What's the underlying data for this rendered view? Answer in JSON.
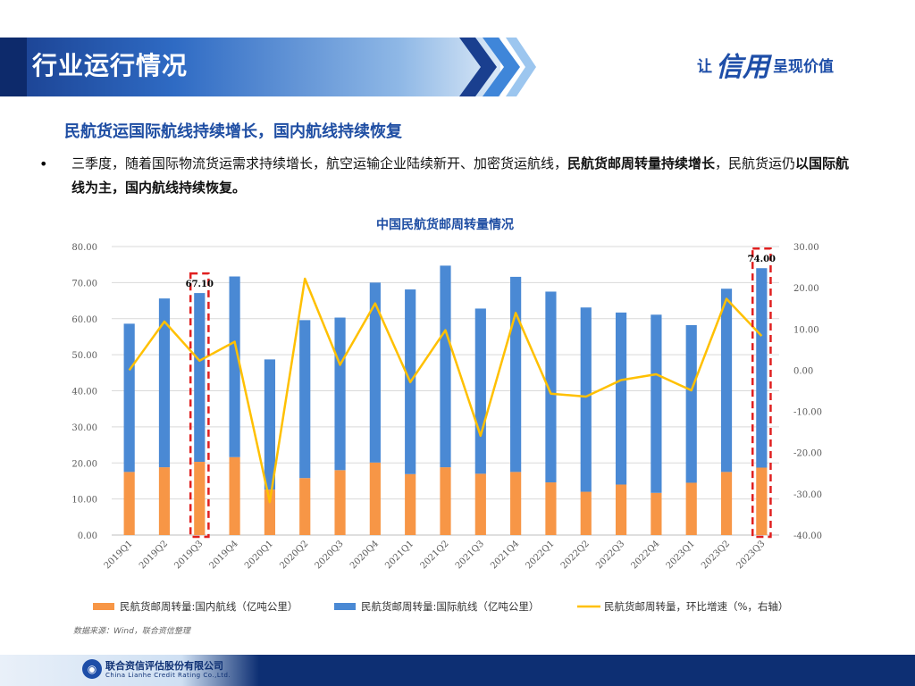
{
  "header": {
    "title": "行业运行情况"
  },
  "slogan": {
    "part1": "让",
    "part2": "信用",
    "part3": "呈现价值"
  },
  "subtitle": "民航货运国际航线持续增长，国内航线持续恢复",
  "paragraph": {
    "bullet": "•",
    "t1": "三季度，随着国际物流货运需求持续增长，航空运输企业陆续新开、加密货运航线，",
    "b1": "民航货邮周转量持续增长",
    "t2": "，民航货运仍",
    "b2": "以国际航线为主，国内航线持续恢复。"
  },
  "source": "数据来源：Wind，联合资信整理",
  "footer": {
    "name": "联合资信评估股份有限公司",
    "english": "China Lianhe Credit Rating Co.,Ltd."
  },
  "colors": {
    "domestic": "#f79646",
    "international": "#4a89d4",
    "growth": "#ffc000",
    "highlight": "#e02020",
    "title": "#1f4ea3"
  },
  "chart_data": {
    "type": "bar",
    "stacked": true,
    "title": "中国民航货邮周转量情况",
    "categories": [
      "2019Q1",
      "2019Q2",
      "2019Q3",
      "2019Q4",
      "2020Q1",
      "2020Q2",
      "2020Q3",
      "2020Q4",
      "2021Q1",
      "2021Q2",
      "2021Q3",
      "2021Q4",
      "2022Q1",
      "2022Q2",
      "2022Q3",
      "2022Q4",
      "2023Q1",
      "2023Q2",
      "2023Q3"
    ],
    "series": [
      {
        "name": "民航货邮周转量:国内航线（亿吨公里）",
        "type": "bar",
        "axis": "left",
        "values": [
          17.5,
          18.8,
          20.3,
          21.6,
          12.6,
          15.8,
          18.0,
          20.1,
          16.9,
          18.8,
          17.0,
          17.5,
          14.6,
          12.0,
          14.0,
          11.7,
          14.5,
          17.5,
          18.7
        ]
      },
      {
        "name": "民航货邮周转量:国际航线（亿吨公里）",
        "type": "bar",
        "axis": "left",
        "values": [
          41.1,
          46.8,
          46.8,
          50.1,
          36.1,
          43.8,
          42.3,
          49.9,
          51.2,
          55.9,
          45.8,
          54.1,
          52.9,
          51.1,
          47.7,
          49.4,
          43.7,
          50.8,
          55.3
        ]
      },
      {
        "name": "民航货邮周转量，环比增速（%，右轴）",
        "type": "line",
        "axis": "right",
        "values": [
          0.0,
          11.8,
          2.3,
          6.9,
          -32.0,
          22.2,
          1.3,
          16.2,
          -2.9,
          9.7,
          -15.9,
          13.9,
          -5.7,
          -6.4,
          -2.4,
          -1.0,
          -4.9,
          17.3,
          8.3
        ]
      }
    ],
    "annotations": [
      {
        "category": "2019Q3",
        "label": "67.10"
      },
      {
        "category": "2023Q3",
        "label": "74.00"
      }
    ],
    "y_left": {
      "min": 0,
      "max": 80,
      "ticks": [
        "0.00",
        "10.00",
        "20.00",
        "30.00",
        "40.00",
        "50.00",
        "60.00",
        "70.00",
        "80.00"
      ]
    },
    "y_right": {
      "min": -40,
      "max": 30,
      "ticks": [
        "-40.00",
        "-30.00",
        "-20.00",
        "-10.00",
        "0.00",
        "10.00",
        "20.00",
        "30.00"
      ]
    },
    "grid": true,
    "legend_position": "bottom"
  }
}
